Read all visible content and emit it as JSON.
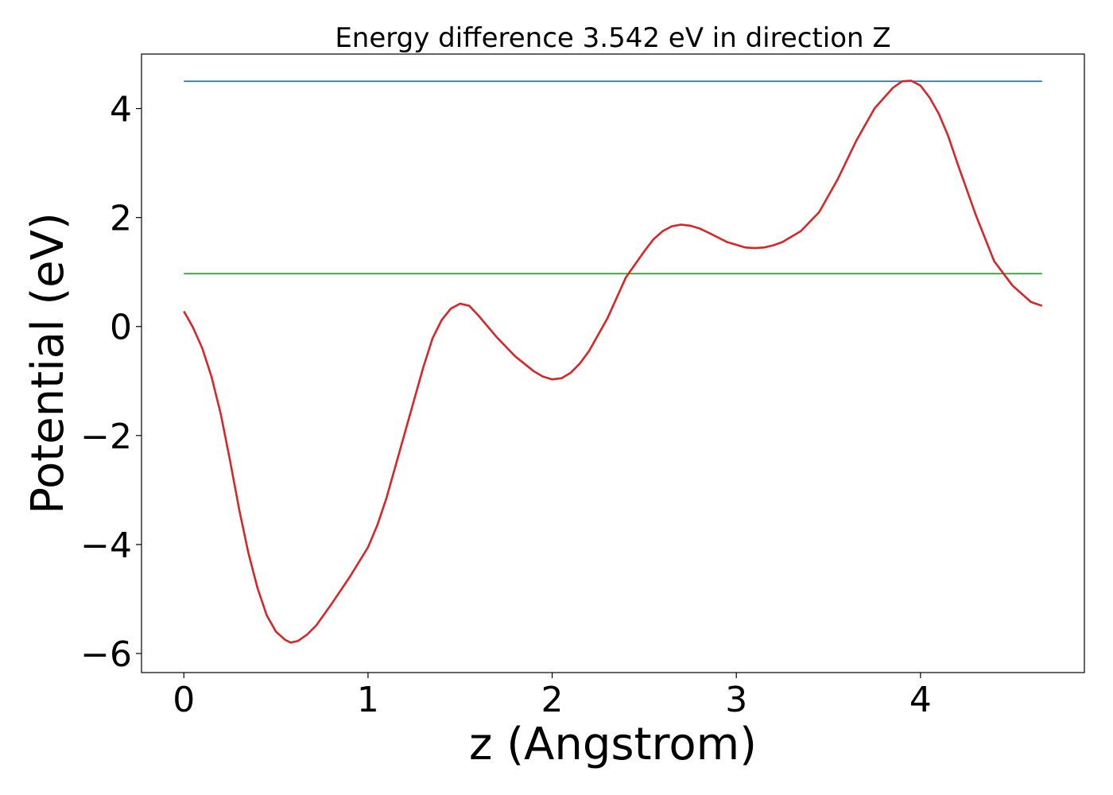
{
  "chart_data": {
    "type": "line",
    "title": "Energy difference 3.542 eV in direction Z",
    "xlabel": "z (Angstrom)",
    "ylabel": "Potential (eV)",
    "xlim": [
      -0.23,
      4.89
    ],
    "ylim": [
      -6.35,
      5.0
    ],
    "xticks": [
      0,
      1,
      2,
      3,
      4
    ],
    "xtick_labels": [
      "0",
      "1",
      "2",
      "3",
      "4"
    ],
    "yticks": [
      -6,
      -4,
      -2,
      0,
      2,
      4
    ],
    "ytick_labels": [
      "−6",
      "−4",
      "−2",
      "0",
      "2",
      "4"
    ],
    "grid": false,
    "legend": "none",
    "series": [
      {
        "color": "#d62728",
        "x": [
          0.0,
          0.05,
          0.1,
          0.15,
          0.2,
          0.25,
          0.3,
          0.35,
          0.4,
          0.45,
          0.5,
          0.55,
          0.58,
          0.62,
          0.67,
          0.72,
          0.8,
          0.9,
          1.0,
          1.05,
          1.1,
          1.15,
          1.2,
          1.25,
          1.3,
          1.35,
          1.4,
          1.45,
          1.5,
          1.55,
          1.6,
          1.7,
          1.8,
          1.9,
          1.95,
          2.0,
          2.05,
          2.1,
          2.15,
          2.2,
          2.3,
          2.4,
          2.5,
          2.55,
          2.6,
          2.65,
          2.7,
          2.75,
          2.8,
          2.85,
          2.95,
          3.05,
          3.1,
          3.15,
          3.2,
          3.25,
          3.35,
          3.45,
          3.55,
          3.65,
          3.75,
          3.85,
          3.9,
          3.95,
          4.0,
          4.05,
          4.1,
          4.15,
          4.2,
          4.3,
          4.4,
          4.5,
          4.6,
          4.66
        ],
        "y": [
          0.28,
          -0.02,
          -0.4,
          -0.92,
          -1.6,
          -2.45,
          -3.35,
          -4.15,
          -4.8,
          -5.3,
          -5.6,
          -5.75,
          -5.8,
          -5.77,
          -5.65,
          -5.48,
          -5.1,
          -4.6,
          -4.05,
          -3.65,
          -3.15,
          -2.55,
          -1.95,
          -1.35,
          -0.75,
          -0.22,
          0.12,
          0.33,
          0.42,
          0.38,
          0.2,
          -0.2,
          -0.55,
          -0.82,
          -0.92,
          -0.97,
          -0.95,
          -0.85,
          -0.68,
          -0.45,
          0.15,
          0.9,
          1.38,
          1.6,
          1.75,
          1.84,
          1.87,
          1.85,
          1.8,
          1.72,
          1.55,
          1.45,
          1.44,
          1.45,
          1.49,
          1.55,
          1.75,
          2.1,
          2.7,
          3.4,
          4.0,
          4.38,
          4.5,
          4.51,
          4.42,
          4.2,
          3.9,
          3.5,
          3.0,
          2.05,
          1.2,
          0.75,
          0.45,
          0.38
        ]
      },
      {
        "color": "#1f77b4",
        "x": [
          0.0,
          4.66
        ],
        "y": [
          4.5,
          4.5
        ]
      },
      {
        "color": "#2ca02c",
        "x": [
          0.0,
          4.66
        ],
        "y": [
          0.97,
          0.97
        ]
      }
    ]
  }
}
